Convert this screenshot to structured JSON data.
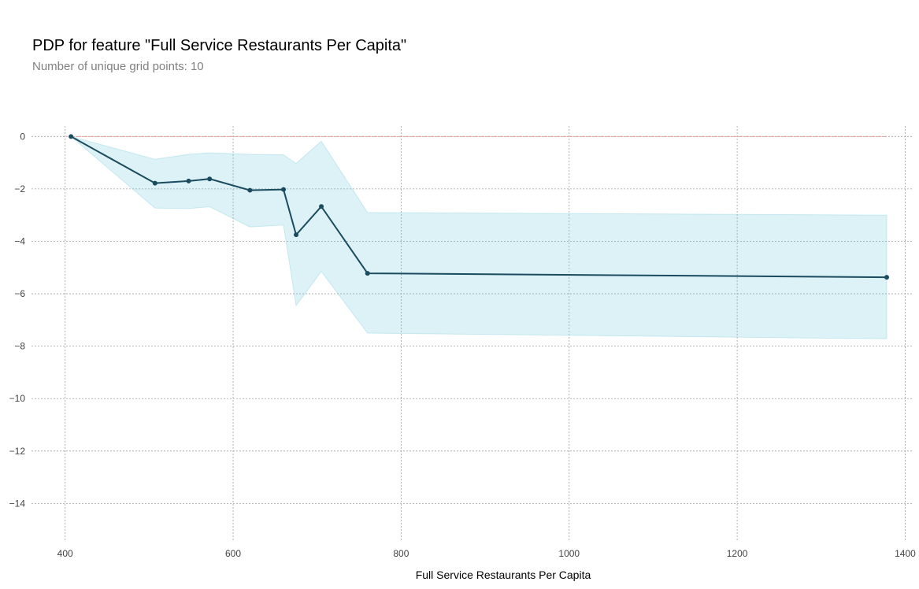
{
  "chart_data": {
    "type": "line",
    "title": "PDP for feature \"Full Service Restaurants Per Capita\"",
    "subtitle": "Number of unique grid points: 10",
    "xlabel": "Full Service Restaurants Per Capita",
    "ylabel": "",
    "xlim": [
      360,
      1408
    ],
    "ylim": [
      -15.4,
      0.4
    ],
    "xticks": [
      400,
      600,
      800,
      1000,
      1200,
      1400
    ],
    "yticks": [
      0,
      -2,
      -4,
      -6,
      -8,
      -10,
      -12,
      -14
    ],
    "grid": true,
    "series": [
      {
        "x": [
          407,
          507,
          547,
          572,
          620,
          660,
          675,
          705,
          760,
          1378
        ],
        "values": [
          0,
          -1.78,
          -1.7,
          -1.62,
          -2.05,
          -2.02,
          -3.75,
          -2.67,
          -5.22,
          -5.37
        ],
        "upper": [
          0,
          -0.87,
          -0.68,
          -0.62,
          -0.68,
          -0.7,
          -1.03,
          -0.18,
          -2.9,
          -3.0
        ],
        "lower": [
          0,
          -2.73,
          -2.75,
          -2.68,
          -3.45,
          -3.38,
          -6.45,
          -5.15,
          -7.5,
          -7.72
        ]
      }
    ],
    "reference_line": 0,
    "colors": {
      "line": "#1a4b5e",
      "band": "#66c2d7",
      "reference": "#e8a090",
      "grid": "#a0a0a0"
    }
  }
}
